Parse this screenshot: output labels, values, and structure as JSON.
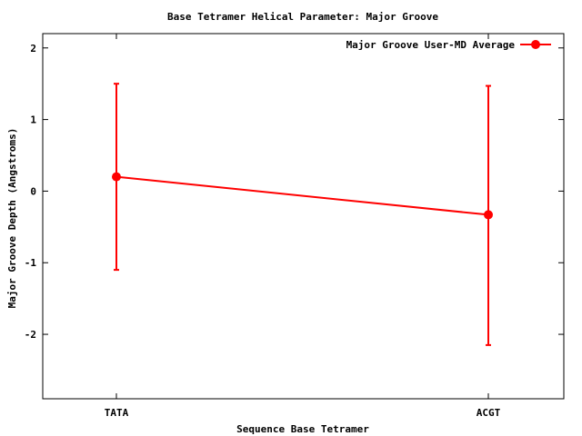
{
  "chart_data": {
    "type": "line",
    "title": "Base Tetramer Helical Parameter: Major Groove",
    "xlabel": "Sequence Base Tetramer",
    "ylabel": "Major Groove Depth (Angstroms)",
    "categories": [
      "TATA",
      "ACGT"
    ],
    "ylim": [
      -2.9,
      2.2
    ],
    "yticks": [
      2,
      1,
      0,
      -1,
      -2
    ],
    "ytick_labels": [
      "2",
      "1",
      "0",
      "-1",
      "-2"
    ],
    "grid": false,
    "legend_position": "top-right",
    "series": [
      {
        "name": "Major Groove User-MD Average",
        "color": "#ff0000",
        "marker": "circle",
        "values": [
          0.2,
          -0.33
        ],
        "error_low": [
          -1.1,
          -2.15
        ],
        "error_high": [
          1.5,
          1.47
        ]
      }
    ]
  }
}
